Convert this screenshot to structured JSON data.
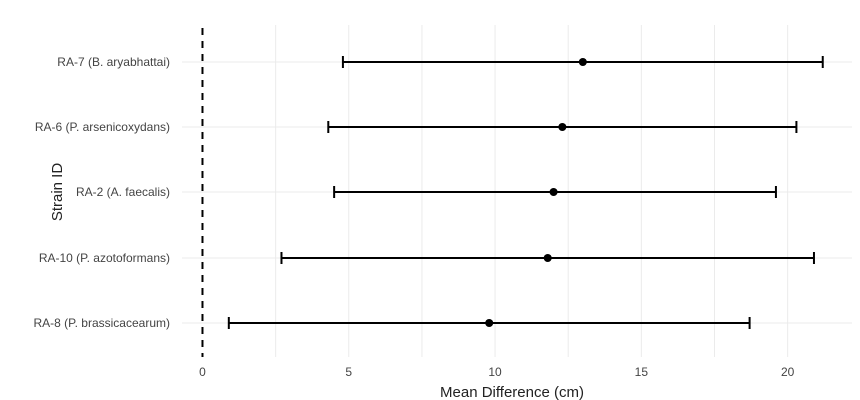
{
  "chart_data": {
    "type": "forest",
    "title": "",
    "xlabel": "Mean Difference (cm)",
    "ylabel": "Strain ID",
    "xlim": [
      -0.7,
      22.2
    ],
    "x_ticks": [
      0,
      5,
      10,
      15,
      20
    ],
    "grid": true,
    "legend": "none",
    "reference_line": {
      "x": 0,
      "style": "dashed"
    },
    "categories": [
      "RA-7 (B. aryabhattai)",
      "RA-6 (P. arsenicoxydans)",
      "RA-2 (A. faecalis)",
      "RA-10 (P. azotoformans)",
      "RA-8 (P. brassicacearum)"
    ],
    "estimates": [
      13.0,
      12.3,
      12.0,
      11.8,
      9.8
    ],
    "lower": [
      4.8,
      4.3,
      4.5,
      2.7,
      0.9
    ],
    "upper": [
      21.2,
      20.3,
      19.6,
      20.9,
      18.7
    ],
    "colors": {
      "marks": "#000000",
      "grid": "#ebebeb"
    }
  }
}
